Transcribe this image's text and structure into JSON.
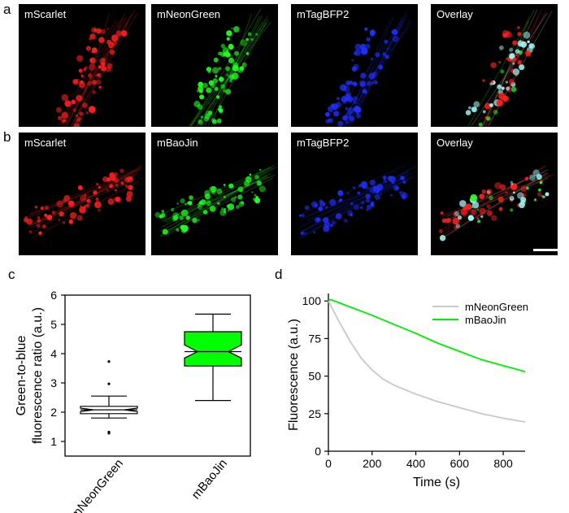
{
  "figure": {
    "panel_labels": [
      "a",
      "b",
      "c",
      "d"
    ],
    "row_a": [
      "mScarlet",
      "mNeonGreen",
      "mTagBFP2",
      "Overlay"
    ],
    "row_b": [
      "mScarlet",
      "mBaoJin",
      "mTagBFP2",
      "Overlay"
    ],
    "colors": {
      "red": "#ff2020",
      "green": "#20ff20",
      "blue": "#2030ff",
      "cyan": "#9ff6f6"
    }
  },
  "chart_data": [
    {
      "type": "box",
      "panel": "c",
      "ylabel_line1": "Green-to-blue",
      "ylabel_line2": "fluorescence ratio (a.u.)",
      "ylim": [
        0.5,
        6
      ],
      "yticks": [
        1,
        2,
        3,
        4,
        5,
        6
      ],
      "categories": [
        "mNeonGreen",
        "mBaoJin"
      ],
      "boxes": [
        {
          "name": "mNeonGreen",
          "whisker_low": 1.8,
          "q1": 1.95,
          "median": 2.08,
          "q3": 2.2,
          "whisker_high": 2.55,
          "notch_low": 2.02,
          "notch_high": 2.14,
          "outliers": [
            1.28,
            1.32,
            2.97,
            3.73
          ],
          "fill": "#ffffff"
        },
        {
          "name": "mBaoJin",
          "whisker_low": 2.4,
          "q1": 3.58,
          "median": 4.07,
          "q3": 4.75,
          "whisker_high": 5.35,
          "notch_low": 3.85,
          "notch_high": 4.3,
          "outliers": [],
          "fill": "#00ff00"
        }
      ]
    },
    {
      "type": "line",
      "panel": "d",
      "xlabel": "Time (s)",
      "ylabel": "Fluorescence (a.u.)",
      "xlim": [
        0,
        900
      ],
      "ylim": [
        0,
        105
      ],
      "xticks": [
        0,
        200,
        400,
        600,
        800
      ],
      "yticks": [
        0,
        25,
        50,
        75,
        100
      ],
      "series": [
        {
          "name": "mNeonGreen",
          "color": "#c8c8c8",
          "x": [
            0,
            50,
            100,
            150,
            200,
            250,
            300,
            400,
            500,
            600,
            700,
            800,
            900
          ],
          "y": [
            100,
            86,
            73,
            62,
            54,
            48,
            44,
            38,
            33,
            29,
            25,
            22,
            19.5
          ]
        },
        {
          "name": "mBaoJin",
          "color": "#00ee00",
          "x": [
            0,
            10,
            100,
            200,
            300,
            400,
            500,
            600,
            700,
            800,
            900
          ],
          "y": [
            100,
            101,
            96,
            90.5,
            84.5,
            78.5,
            72,
            66.5,
            61,
            57,
            53
          ]
        }
      ]
    }
  ],
  "scale_bar": true
}
